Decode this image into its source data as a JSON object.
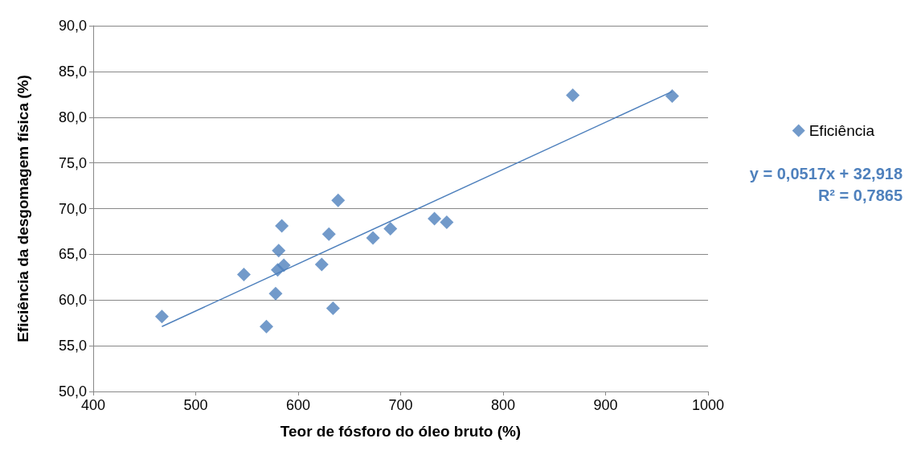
{
  "chart_data": {
    "type": "scatter",
    "xlabel": "Teor de fósforo do óleo bruto (%)",
    "ylabel": "Eficiência da desgomagem física (%)",
    "xlim": [
      400,
      1000
    ],
    "xticks": [
      400,
      500,
      600,
      700,
      800,
      900,
      1000
    ],
    "ylim": [
      50,
      90
    ],
    "yticks": [
      {
        "value": 50,
        "label": "50,0"
      },
      {
        "value": 55,
        "label": "55,0"
      },
      {
        "value": 60,
        "label": "60,0"
      },
      {
        "value": 65,
        "label": "65,0"
      },
      {
        "value": 70,
        "label": "70,0"
      },
      {
        "value": 75,
        "label": "75,0"
      },
      {
        "value": 80,
        "label": "80,0"
      },
      {
        "value": 85,
        "label": "85,0"
      },
      {
        "value": 90,
        "label": "90,0"
      }
    ],
    "grid": "y",
    "legend": "right",
    "marker": "diamond",
    "series": [
      {
        "name": "Eficiência",
        "color": "#4f81bd",
        "x": [
          467,
          547,
          569,
          578,
          581,
          580,
          586,
          584,
          623,
          630,
          634,
          639,
          673,
          690,
          733,
          745,
          868,
          965
        ],
        "values": [
          58.2,
          62.8,
          57.1,
          60.7,
          65.4,
          63.3,
          63.8,
          68.1,
          63.9,
          67.2,
          59.1,
          70.9,
          66.8,
          67.8,
          68.9,
          68.5,
          82.4,
          82.3
        ]
      },
      {
        "type": "line",
        "color": "#4f81bd",
        "marker": "none",
        "x": [
          467,
          965
        ],
        "values": [
          57.1,
          82.8
        ]
      }
    ],
    "annotations": [
      "y = 0,0517x + 32,918",
      "R² = 0,7865"
    ]
  }
}
